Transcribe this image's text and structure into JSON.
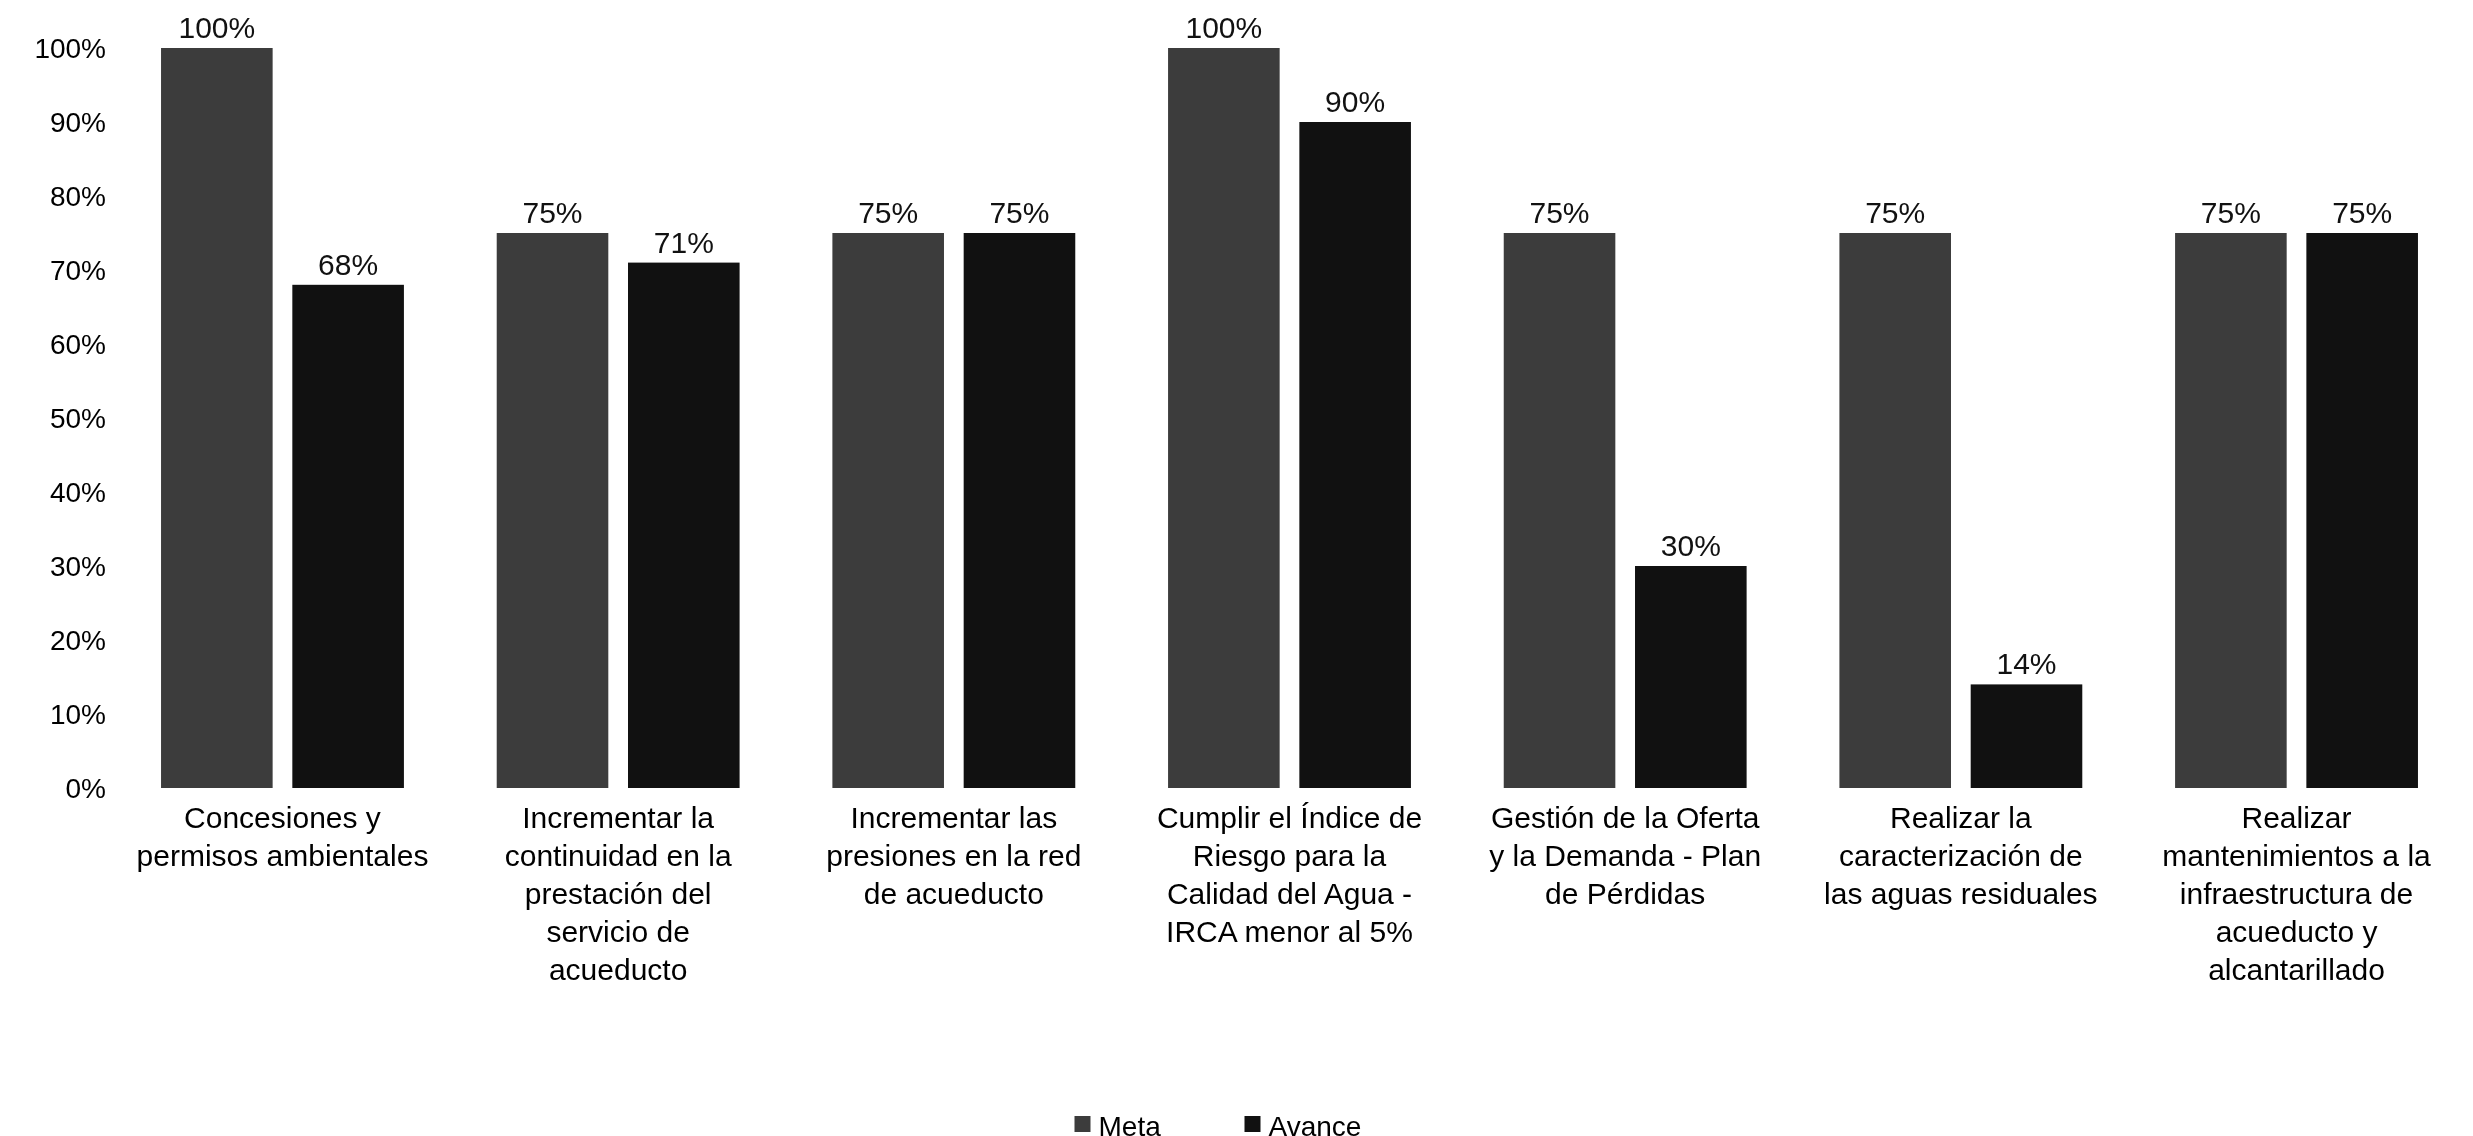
{
  "chart_data": {
    "type": "bar",
    "categories": [
      "Concesiones y permisos ambientales",
      "Incrementar la continuidad en la prestación del servicio de acueducto",
      "Incrementar las presiones en la red de acueducto",
      "Cumplir el Índice de Riesgo para la Calidad del Agua - IRCA menor al 5%",
      "Gestión de la Oferta y la Demanda - Plan de Pérdidas",
      "Realizar la caracterización de las aguas residuales",
      "Realizar mantenimientos a la infraestructura de acueducto y alcantarillado"
    ],
    "series": [
      {
        "name": "Meta",
        "color": "#3c3c3c",
        "values": [
          100,
          75,
          75,
          100,
          75,
          75,
          75
        ],
        "value_labels": [
          "100%",
          "75%",
          "75%",
          "100%",
          "75%",
          "75%",
          "75%"
        ]
      },
      {
        "name": "Avance",
        "color": "#111111",
        "values": [
          68,
          71,
          75,
          90,
          30,
          14,
          75
        ],
        "value_labels": [
          "68%",
          "71%",
          "75%",
          "90%",
          "30%",
          "14%",
          "75%"
        ]
      }
    ],
    "ylim": [
      0,
      100
    ],
    "yticks": [
      {
        "value": 0,
        "label": "0%"
      },
      {
        "value": 10,
        "label": "10%"
      },
      {
        "value": 20,
        "label": "20%"
      },
      {
        "value": 30,
        "label": "30%"
      },
      {
        "value": 40,
        "label": "40%"
      },
      {
        "value": 50,
        "label": "50%"
      },
      {
        "value": 60,
        "label": "60%"
      },
      {
        "value": 70,
        "label": "70%"
      },
      {
        "value": 80,
        "label": "80%"
      },
      {
        "value": 90,
        "label": "90%"
      },
      {
        "value": 100,
        "label": "100%"
      }
    ],
    "legend": "bottom"
  }
}
